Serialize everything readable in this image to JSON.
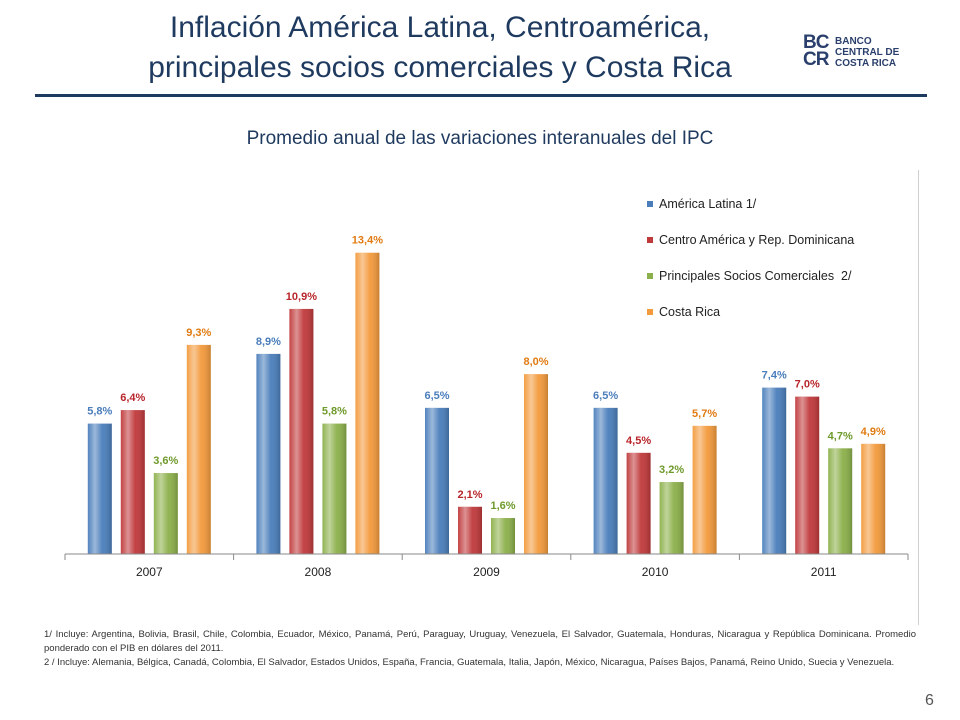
{
  "slide": {
    "title_line1": "Inflación América Latina, Centroamérica,",
    "title_line2": "principales socios comerciales y Costa Rica",
    "subtitle": "Promedio anual de las variaciones interanuales del IPC",
    "logo": {
      "mark_line1": "BC",
      "mark_line2": "CR",
      "name_line1": "BANCO",
      "name_line2": "CENTRAL DE",
      "name_line3": "COSTA RICA"
    },
    "note1": "1/ Incluye: Argentina, Bolivia, Brasil, Chile, Colombia, Ecuador, México, Panamá, Perú, Paraguay, Uruguay, Venezuela, El Salvador, Guatemala, Honduras, Nicaragua y República Dominicana. Promedio ponderado con el PIB en dólares del 2011.",
    "note2": "2 / Incluye: Alemania, Bélgica, Canadá, Colombia, El Salvador, Estados Unidos, España, Francia, Guatemala, Italia, Japón, México, Nicaragua, Países Bajos, Panamá, Reino Unido, Suecia y Venezuela.",
    "page_number": "6"
  },
  "chart_data": {
    "type": "bar",
    "categories": [
      "2007",
      "2008",
      "2009",
      "2010",
      "2011"
    ],
    "ylim": [
      0,
      14.5
    ],
    "grid": false,
    "legend_position": "top-right",
    "value_labels": true,
    "series": [
      {
        "name": "América Latina 1/",
        "color": "#4a7ebb",
        "label_color": "#4a7ebb",
        "values": [
          5.8,
          8.9,
          6.5,
          6.5,
          7.4
        ],
        "labels": [
          "5,8%",
          "8,9%",
          "6,5%",
          "6,5%",
          "7,4%"
        ]
      },
      {
        "name": "Centro América y Rep. Dominicana",
        "color": "#c0393b",
        "label_color": "#b8252a",
        "values": [
          6.4,
          10.9,
          2.1,
          4.5,
          7.0
        ],
        "labels": [
          "6,4%",
          "10,9%",
          "2,1%",
          "4,5%",
          "7,0%"
        ]
      },
      {
        "name": "Principales Socios Comerciales  2/",
        "color": "#8cb04a",
        "label_color": "#6f9a2c",
        "values": [
          3.6,
          5.8,
          1.6,
          3.2,
          4.7
        ],
        "labels": [
          "3,6%",
          "5,8%",
          "1,6%",
          "3,2%",
          "4,7%"
        ]
      },
      {
        "name": "Costa Rica",
        "color": "#f39a3c",
        "label_color": "#e07b12",
        "values": [
          9.3,
          13.4,
          8.0,
          5.7,
          4.9
        ],
        "labels": [
          "9,3%",
          "13,4%",
          "8,0%",
          "5,7%",
          "4,9%"
        ]
      }
    ]
  }
}
